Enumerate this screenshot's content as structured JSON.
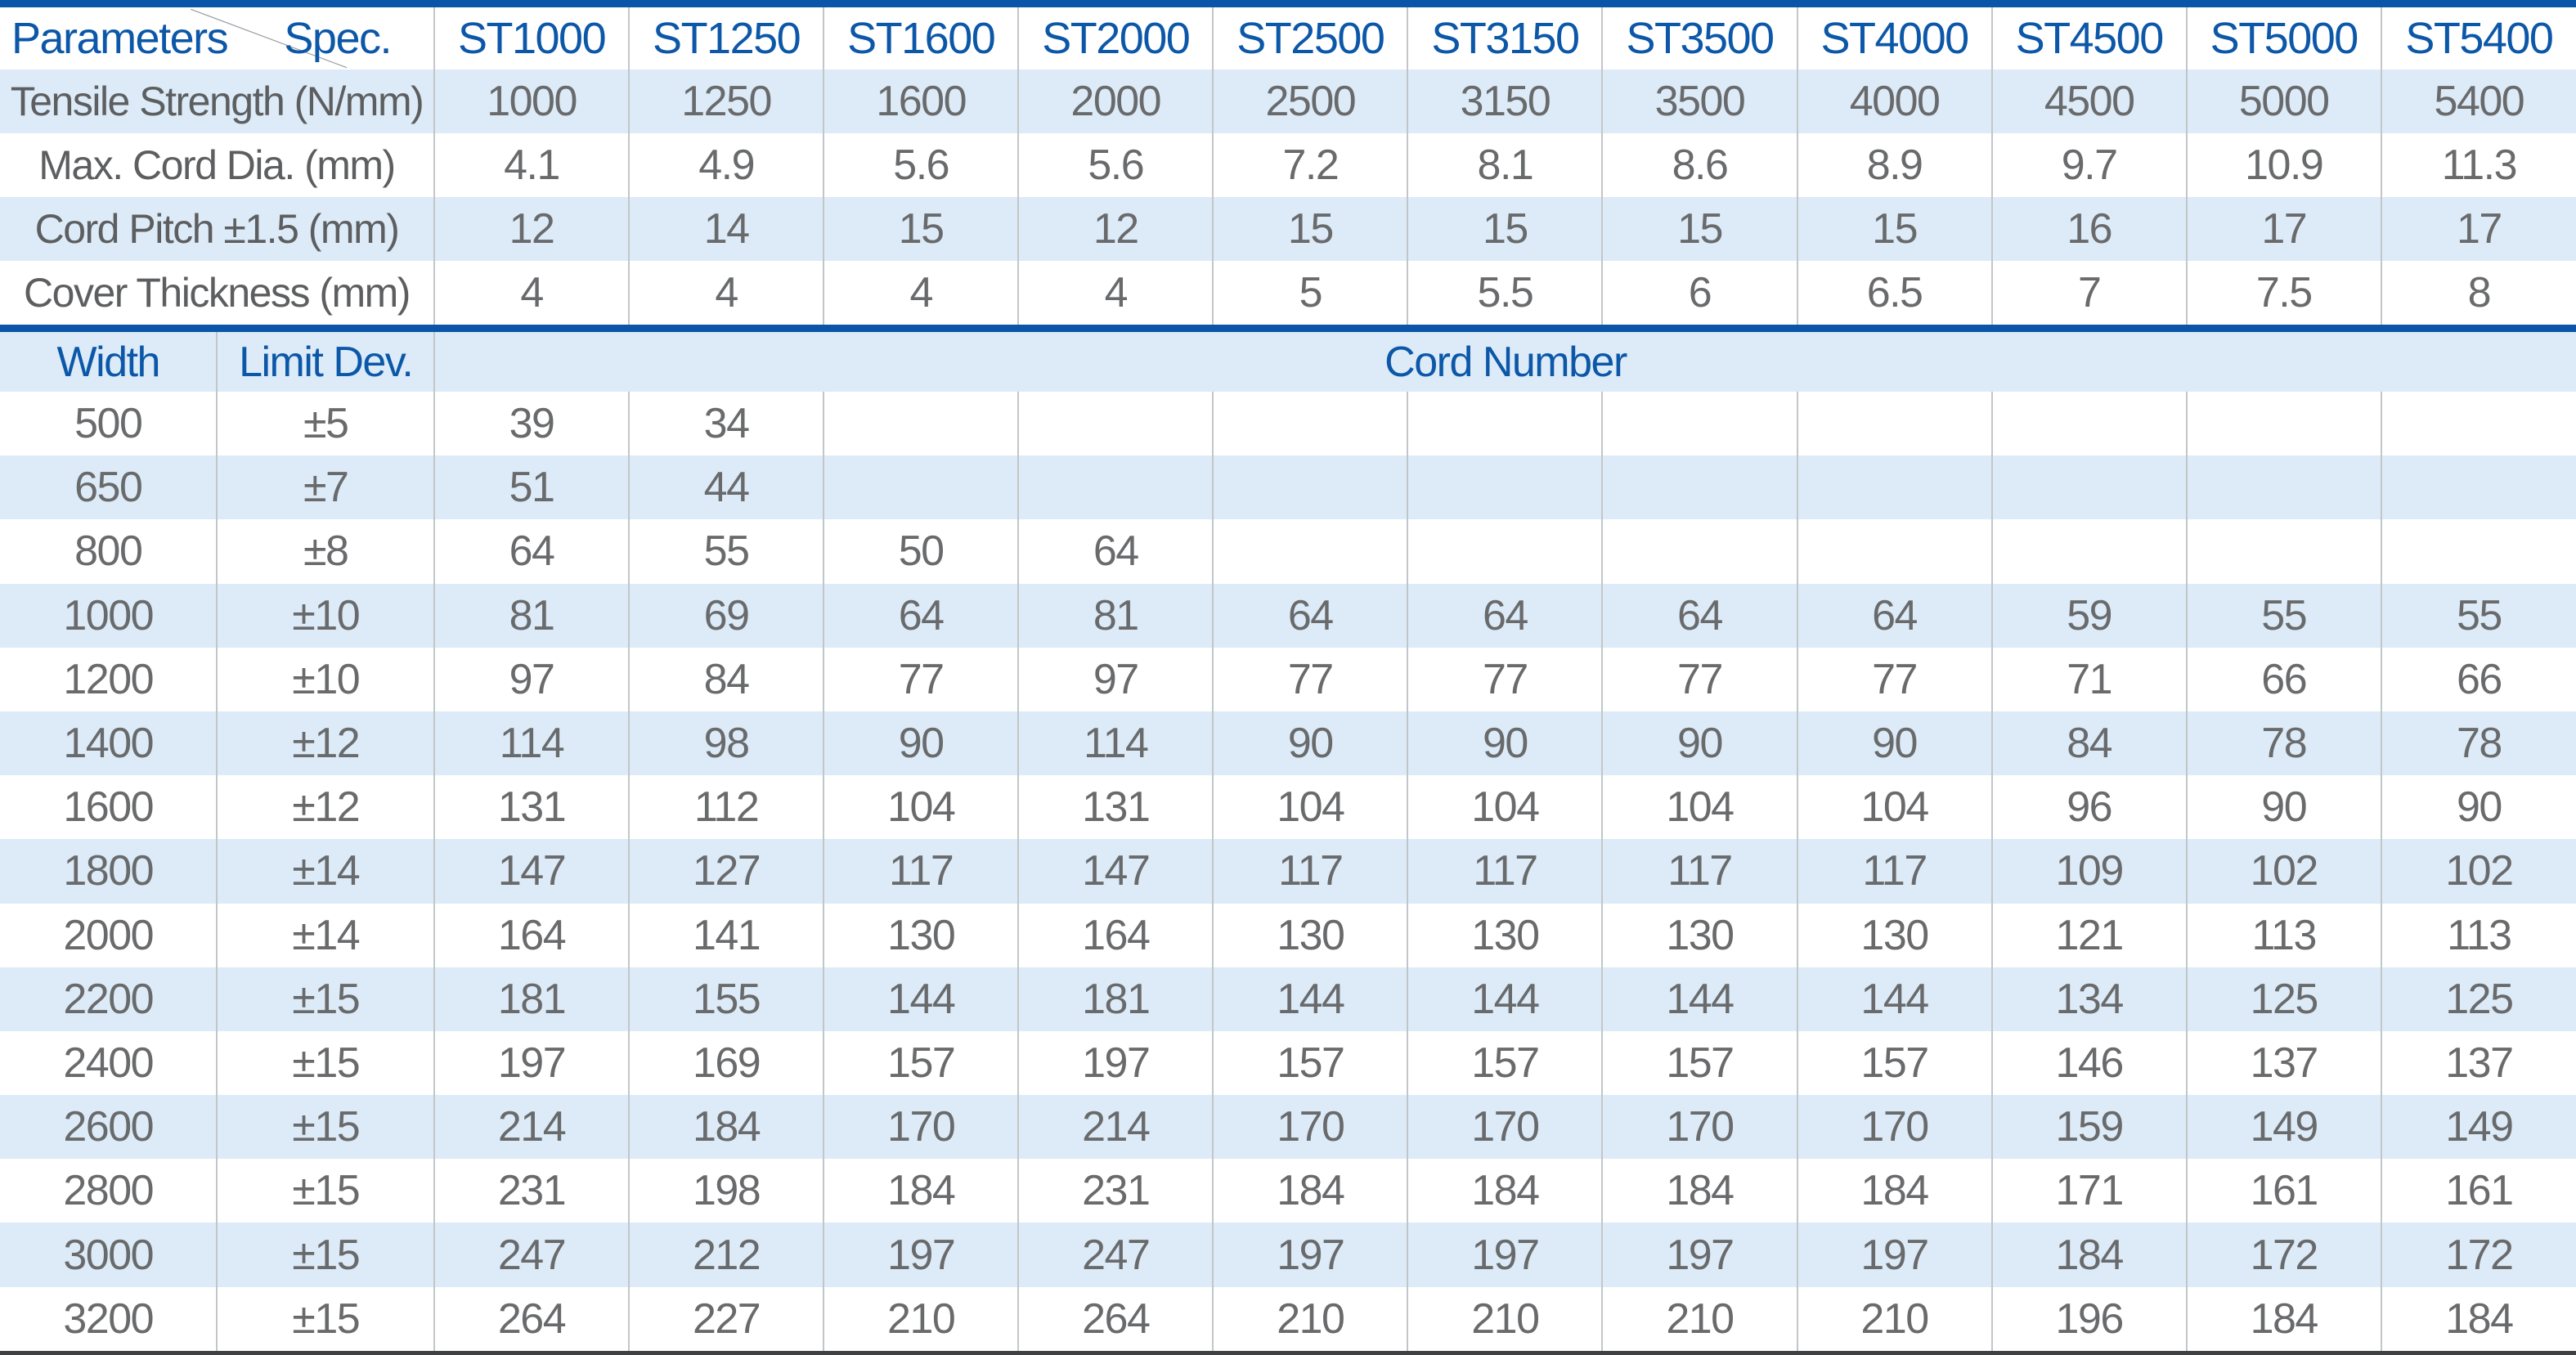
{
  "colors": {
    "header_text_blue": "#0c57a8",
    "bar_blue": "#0a55a7",
    "row_light_blue": "#dcebf7",
    "label_gray": "#5d5e60",
    "value_gray": "#696a6c",
    "column_border_gray": "#c3c6c8",
    "bottom_line_dark": "#3f4143"
  },
  "table1": {
    "corner": {
      "left": "Parameters",
      "right": "Spec."
    },
    "columns": [
      "ST1000",
      "ST1250",
      "ST1600",
      "ST2000",
      "ST2500",
      "ST3150",
      "ST3500",
      "ST4000",
      "ST4500",
      "ST5000",
      "ST5400"
    ],
    "rows": [
      {
        "label": "Tensile Strength (N/mm)",
        "values": [
          "1000",
          "1250",
          "1600",
          "2000",
          "2500",
          "3150",
          "3500",
          "4000",
          "4500",
          "5000",
          "5400"
        ]
      },
      {
        "label": "Max. Cord Dia. (mm)",
        "values": [
          "4.1",
          "4.9",
          "5.6",
          "5.6",
          "7.2",
          "8.1",
          "8.6",
          "8.9",
          "9.7",
          "10.9",
          "11.3"
        ]
      },
      {
        "label": "Cord Pitch ±1.5 (mm)",
        "values": [
          "12",
          "14",
          "15",
          "12",
          "15",
          "15",
          "15",
          "15",
          "16",
          "17",
          "17"
        ]
      },
      {
        "label": "Cover Thickness (mm)",
        "values": [
          "4",
          "4",
          "4",
          "4",
          "5",
          "5.5",
          "6",
          "6.5",
          "7",
          "7.5",
          "8"
        ]
      }
    ]
  },
  "table2": {
    "header": {
      "width": "Width",
      "limit_dev": "Limit Dev.",
      "cord_number": "Cord Number"
    },
    "rows": [
      {
        "width": "500",
        "dev": "±5",
        "values": [
          "39",
          "34",
          "",
          "",
          "",
          "",
          "",
          "",
          "",
          "",
          ""
        ]
      },
      {
        "width": "650",
        "dev": "±7",
        "values": [
          "51",
          "44",
          "",
          "",
          "",
          "",
          "",
          "",
          "",
          "",
          ""
        ]
      },
      {
        "width": "800",
        "dev": "±8",
        "values": [
          "64",
          "55",
          "50",
          "64",
          "",
          "",
          "",
          "",
          "",
          "",
          ""
        ]
      },
      {
        "width": "1000",
        "dev": "±10",
        "values": [
          "81",
          "69",
          "64",
          "81",
          "64",
          "64",
          "64",
          "64",
          "59",
          "55",
          "55"
        ]
      },
      {
        "width": "1200",
        "dev": "±10",
        "values": [
          "97",
          "84",
          "77",
          "97",
          "77",
          "77",
          "77",
          "77",
          "71",
          "66",
          "66"
        ]
      },
      {
        "width": "1400",
        "dev": "±12",
        "values": [
          "114",
          "98",
          "90",
          "114",
          "90",
          "90",
          "90",
          "90",
          "84",
          "78",
          "78"
        ]
      },
      {
        "width": "1600",
        "dev": "±12",
        "values": [
          "131",
          "112",
          "104",
          "131",
          "104",
          "104",
          "104",
          "104",
          "96",
          "90",
          "90"
        ]
      },
      {
        "width": "1800",
        "dev": "±14",
        "values": [
          "147",
          "127",
          "117",
          "147",
          "117",
          "117",
          "117",
          "117",
          "109",
          "102",
          "102"
        ]
      },
      {
        "width": "2000",
        "dev": "±14",
        "values": [
          "164",
          "141",
          "130",
          "164",
          "130",
          "130",
          "130",
          "130",
          "121",
          "113",
          "113"
        ]
      },
      {
        "width": "2200",
        "dev": "±15",
        "values": [
          "181",
          "155",
          "144",
          "181",
          "144",
          "144",
          "144",
          "144",
          "134",
          "125",
          "125"
        ]
      },
      {
        "width": "2400",
        "dev": "±15",
        "values": [
          "197",
          "169",
          "157",
          "197",
          "157",
          "157",
          "157",
          "157",
          "146",
          "137",
          "137"
        ]
      },
      {
        "width": "2600",
        "dev": "±15",
        "values": [
          "214",
          "184",
          "170",
          "214",
          "170",
          "170",
          "170",
          "170",
          "159",
          "149",
          "149"
        ]
      },
      {
        "width": "2800",
        "dev": "±15",
        "values": [
          "231",
          "198",
          "184",
          "231",
          "184",
          "184",
          "184",
          "184",
          "171",
          "161",
          "161"
        ]
      },
      {
        "width": "3000",
        "dev": "±15",
        "values": [
          "247",
          "212",
          "197",
          "247",
          "197",
          "197",
          "197",
          "197",
          "184",
          "172",
          "172"
        ]
      },
      {
        "width": "3200",
        "dev": "±15",
        "values": [
          "264",
          "227",
          "210",
          "264",
          "210",
          "210",
          "210",
          "210",
          "196",
          "184",
          "184"
        ]
      }
    ]
  }
}
